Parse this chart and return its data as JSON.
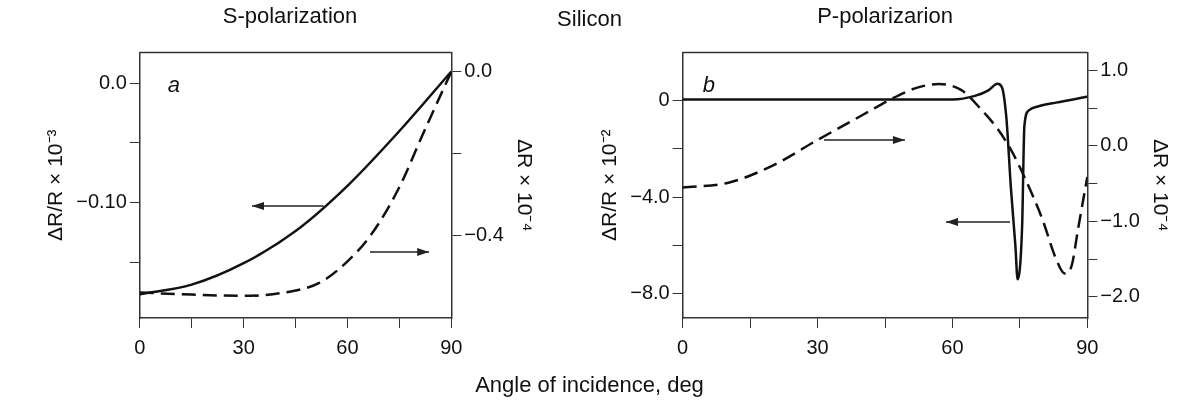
{
  "chart_data": [
    {
      "type": "line",
      "title": "S-polarization",
      "xlabel": "Angle of incidence, deg",
      "ylabel": "ΔR/R × 10⁻³",
      "y2label": "ΔR × 10⁻⁴",
      "annotations": [
        "Silicon",
        "a"
      ],
      "xlim": [
        0,
        90
      ],
      "xticks": [
        0,
        {
          "value": 15,
          "label": null
        },
        30,
        {
          "value": 45,
          "label": null
        },
        60,
        {
          "value": 75,
          "label": null
        },
        90
      ],
      "ylim": [
        -0.197,
        0.026
      ],
      "yticks": [
        {
          "value": 0,
          "label": "0.0"
        },
        {
          "value": -0.05,
          "label": null
        },
        {
          "value": -0.1,
          "label": "−0.10"
        },
        {
          "value": -0.15,
          "label": null
        }
      ],
      "y2lim": [
        -0.6,
        0.047
      ],
      "y2ticks": [
        {
          "value": 0,
          "label": "0.0"
        },
        {
          "value": -0.2,
          "label": null
        },
        {
          "value": -0.4,
          "label": "−0.4"
        }
      ],
      "grid": false,
      "legend": false,
      "marker": "none",
      "series": [
        {
          "color": "#111111",
          "line_style": "solid",
          "x": [
            0,
            15,
            30,
            45,
            60,
            75,
            90
          ],
          "values": [
            -0.177,
            -0.169,
            -0.151,
            -0.124,
            -0.086,
            -0.04,
            0.01
          ]
        },
        {
          "color": "#111111",
          "line_style": "dashed",
          "axis": "y2",
          "x": [
            0,
            15,
            30,
            45,
            52,
            60,
            67,
            75,
            82,
            90
          ],
          "values": [
            -0.538,
            -0.543,
            -0.546,
            -0.533,
            -0.514,
            -0.462,
            -0.395,
            -0.281,
            -0.148,
            0.0
          ]
        }
      ]
    },
    {
      "type": "line",
      "title": "P-polarizarion",
      "ylabel": "ΔR/R × 10⁻²",
      "y2label": "ΔR × 10⁻⁴",
      "annotations": [
        "b"
      ],
      "xlim": [
        0,
        90
      ],
      "xticks": [
        0,
        {
          "value": 15,
          "label": null
        },
        30,
        {
          "value": 45,
          "label": null
        },
        60,
        {
          "value": 75,
          "label": null
        },
        90
      ],
      "ylim": [
        -9,
        2
      ],
      "yticks": [
        0,
        {
          "value": -2,
          "label": null
        },
        {
          "value": -4,
          "label": "−4.0"
        },
        {
          "value": -6,
          "label": null
        },
        {
          "value": -8,
          "label": "−8.0"
        }
      ],
      "y2lim": [
        -2.28,
        1.24
      ],
      "y2ticks": [
        {
          "value": 1,
          "label": "1.0"
        },
        {
          "value": 0.5,
          "label": null
        },
        {
          "value": 0,
          "label": "0.0"
        },
        {
          "value": -0.5,
          "label": null
        },
        {
          "value": -1,
          "label": "−1.0"
        },
        {
          "value": -1.5,
          "label": null
        },
        {
          "value": -2,
          "label": "−2.0"
        }
      ],
      "grid": false,
      "legend": false,
      "marker": "none",
      "series": [
        {
          "color": "#111111",
          "line_style": "solid",
          "x": [
            0,
            30,
            60,
            65,
            68,
            70,
            71,
            72,
            73,
            74,
            74.5,
            75.5,
            76,
            77,
            79,
            83,
            90
          ],
          "values": [
            0.05,
            0.05,
            0.05,
            0.2,
            0.43,
            0.7,
            0.56,
            -0.72,
            -3.6,
            -6.0,
            -7.4,
            -5.2,
            -1.05,
            -0.4,
            -0.24,
            -0.08,
            0.16
          ]
        },
        {
          "color": "#111111",
          "line_style": "dashed",
          "axis": "y2",
          "x": [
            0,
            10,
            20,
            30,
            40,
            47,
            52,
            57,
            62,
            66,
            70,
            73,
            76,
            80,
            83,
            85,
            86.5,
            88,
            90
          ],
          "values": [
            -0.55,
            -0.49,
            -0.26,
            0.08,
            0.41,
            0.64,
            0.77,
            0.82,
            0.74,
            0.51,
            0.23,
            -0.05,
            -0.41,
            -0.97,
            -1.49,
            -1.69,
            -1.59,
            -1.08,
            -0.41
          ]
        }
      ]
    }
  ]
}
